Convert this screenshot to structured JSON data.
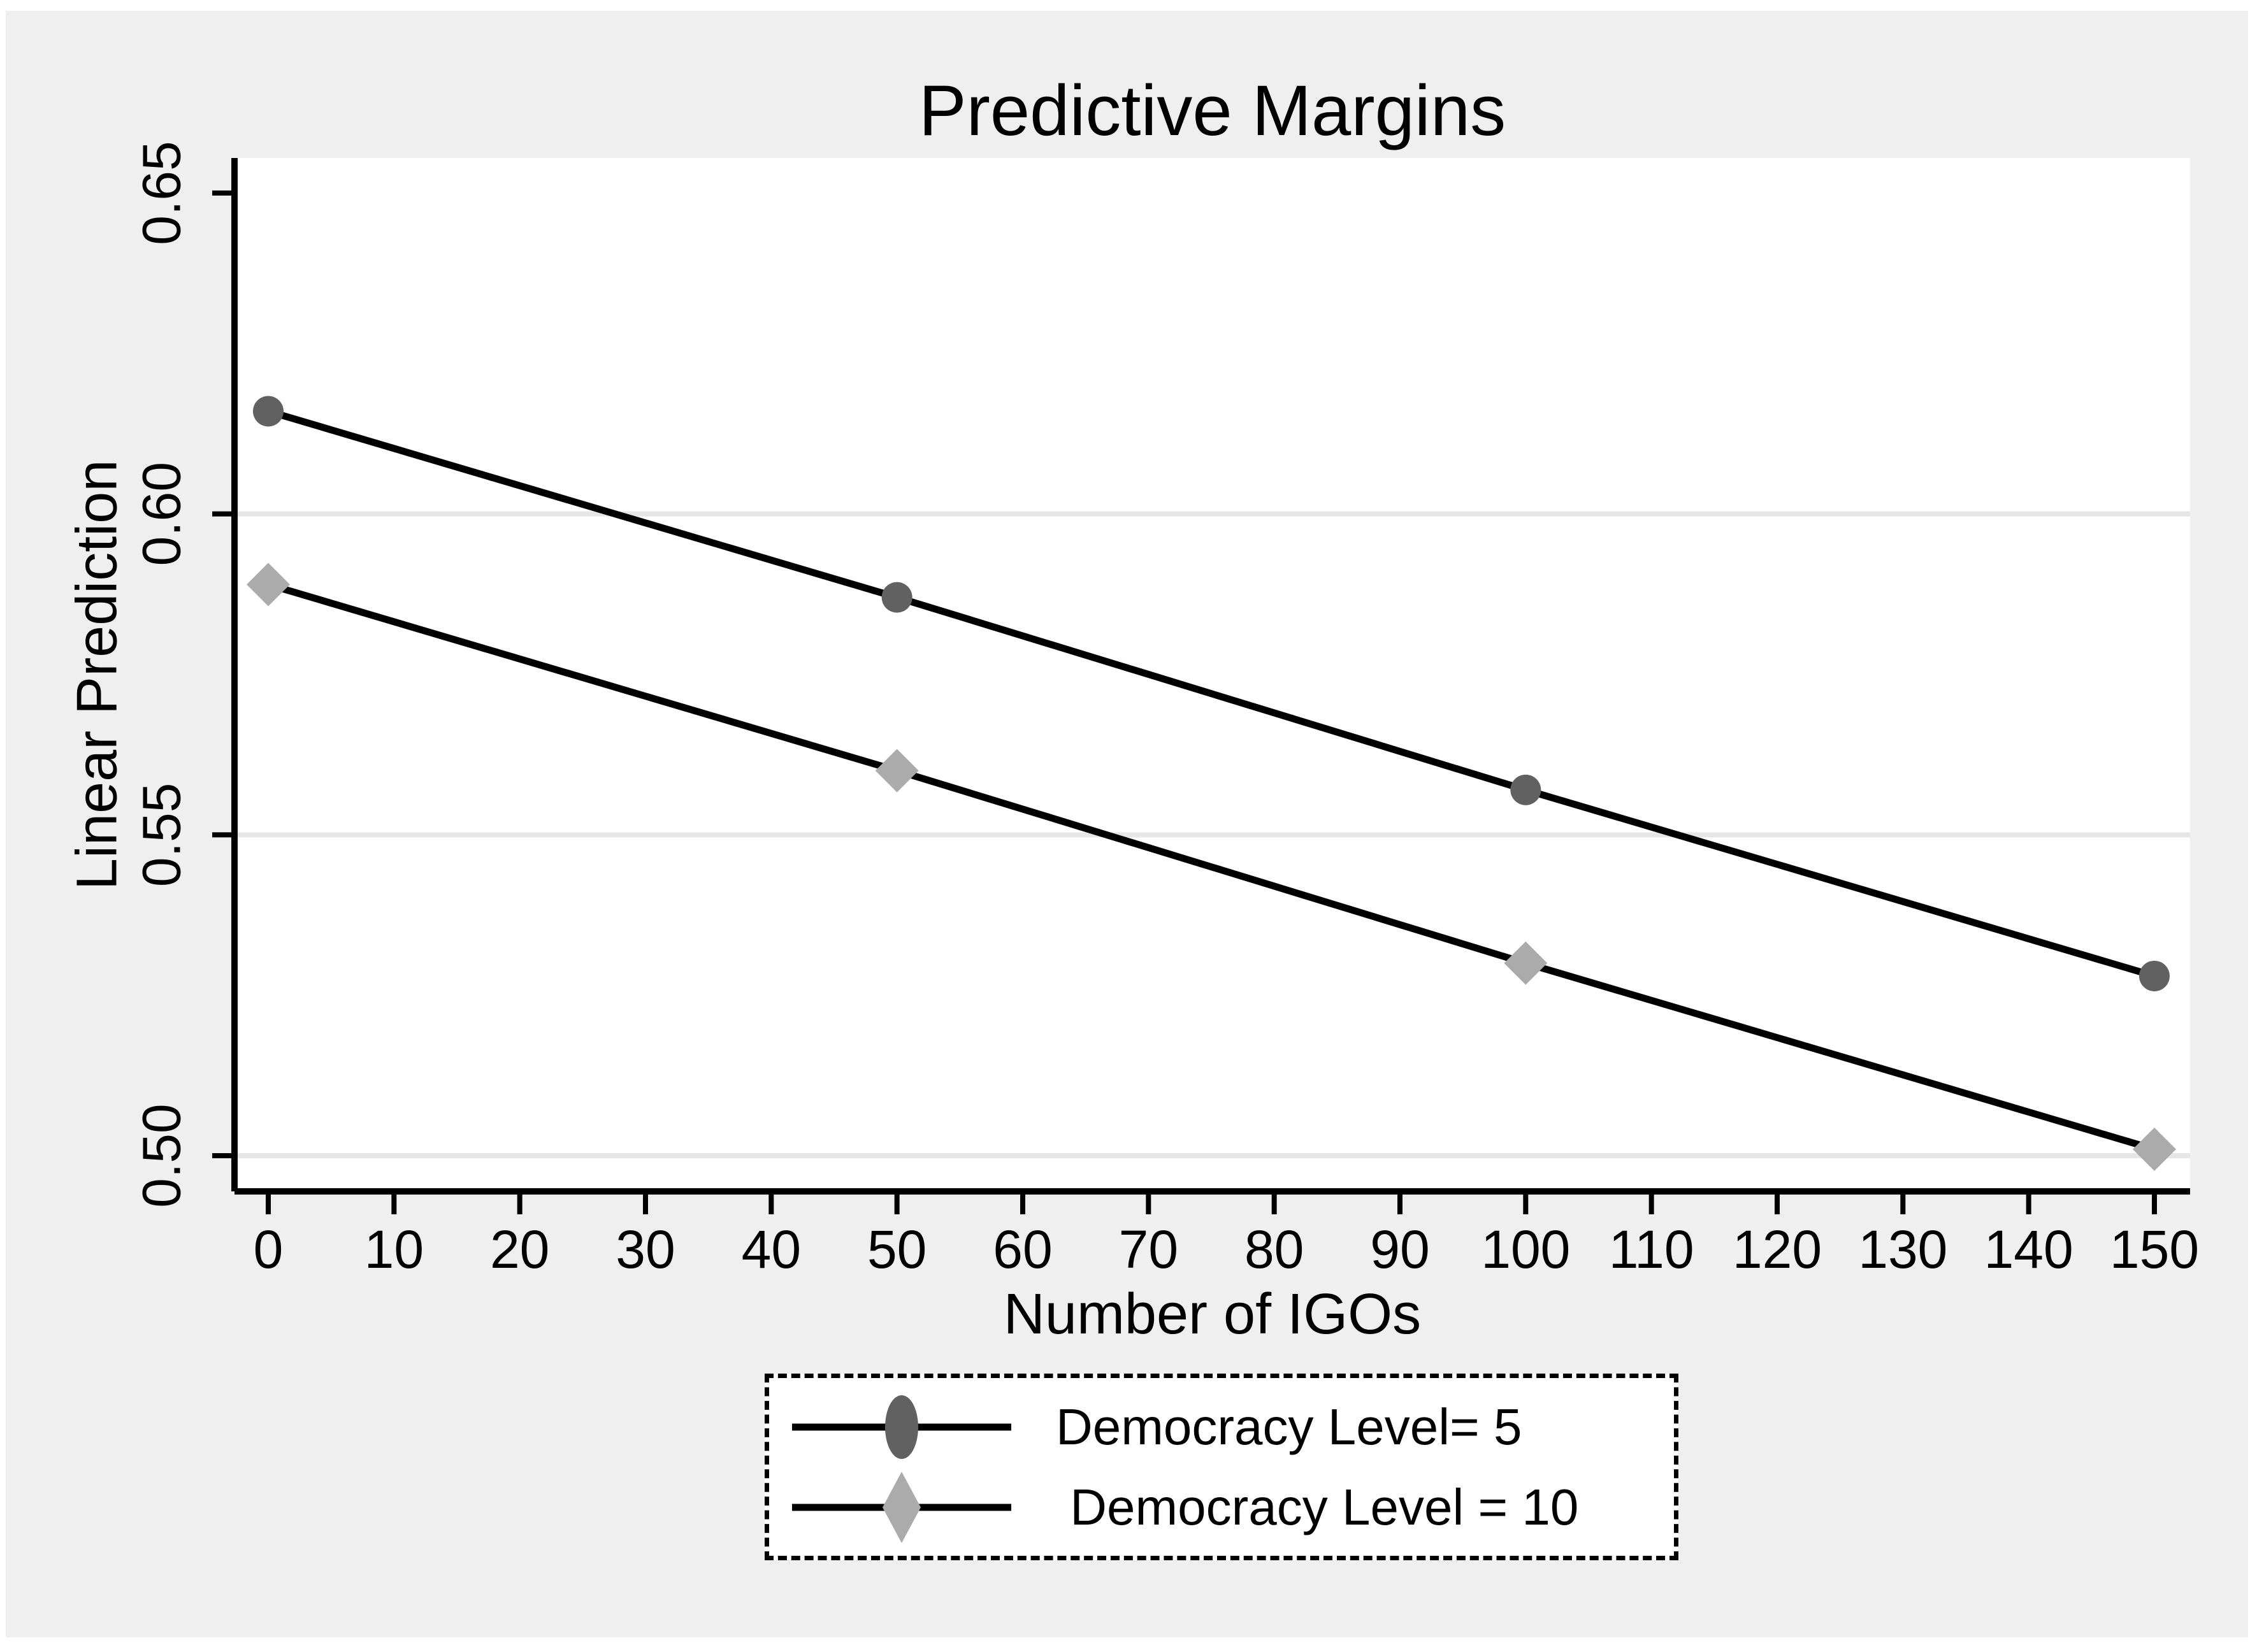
{
  "figure": {
    "background": "#efefef",
    "plot_background": "#ffffff",
    "grid_color": "#e6e6e6",
    "axis_color": "#000000",
    "text_color": "#000000"
  },
  "chart_data": {
    "type": "line",
    "title": "Predictive Margins",
    "xlabel": "Number of IGOs",
    "ylabel": "Linear Prediction",
    "xlim": [
      0,
      150
    ],
    "ylim": [
      0.5,
      0.65
    ],
    "x_ticks": [
      0,
      10,
      20,
      30,
      40,
      50,
      60,
      70,
      80,
      90,
      100,
      110,
      120,
      130,
      140,
      150
    ],
    "y_ticks": [
      0.5,
      0.55,
      0.6,
      0.65
    ],
    "y_tick_labels": [
      "0.50",
      "0.55",
      "0.60",
      "0.65"
    ],
    "grid_y": [
      0.5,
      0.55,
      0.6
    ],
    "grid": "horizontal-only",
    "legend_position": "bottom-center",
    "legend_border": "dashed",
    "series": [
      {
        "name": "Democracy Level= 5",
        "marker": "circle",
        "marker_color": "#616161",
        "line_color": "#000000",
        "x": [
          0,
          50,
          100,
          150
        ],
        "y": [
          0.616,
          0.587,
          0.557,
          0.528
        ]
      },
      {
        "name": " Democracy Level = 10",
        "marker": "diamond",
        "marker_color": "#ababab",
        "line_color": "#000000",
        "x": [
          0,
          50,
          100,
          150
        ],
        "y": [
          0.589,
          0.56,
          0.53,
          0.501
        ]
      }
    ]
  }
}
